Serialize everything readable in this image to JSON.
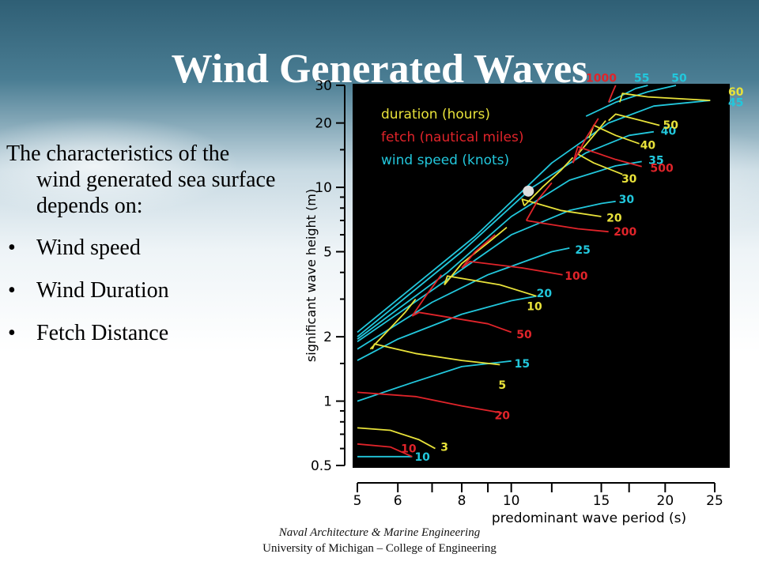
{
  "slide": {
    "title": "Wind Generated Waves",
    "intro": "The characteristics of the wind generated sea surface depends on:",
    "bullet_glyph": "•",
    "bullets": [
      "Wind speed",
      "Wind Duration",
      "Fetch Distance"
    ],
    "footer_line1": "Naval Architecture & Marine Engineering",
    "footer_line2": "University of Michigan – College of Engineering"
  },
  "chart_data": {
    "type": "line",
    "xlabel": "predominant wave period (s)",
    "ylabel": "significant wave height (m)",
    "x_scale": "log",
    "y_scale": "log",
    "xlim": [
      5,
      25
    ],
    "ylim": [
      0.5,
      30
    ],
    "x_ticks": [
      5,
      6,
      8,
      10,
      15,
      20,
      25
    ],
    "x_tick_labels": [
      "5",
      "6",
      "8",
      "10",
      "15",
      "20",
      "25"
    ],
    "x_minor_ticks": [
      7,
      9,
      12,
      17
    ],
    "y_ticks": [
      0.5,
      1,
      2,
      5,
      10,
      20,
      30
    ],
    "y_tick_labels": [
      "0.5",
      "1",
      "2",
      "5",
      "10",
      "20",
      "30"
    ],
    "y_minor_ticks": [
      0.6,
      0.7,
      0.8,
      0.9,
      1.5,
      3,
      4,
      6,
      7,
      8,
      9,
      15
    ],
    "grid": false,
    "background": "#000000",
    "legend_position": "top-left",
    "legend": [
      {
        "label": "duration (hours)",
        "color": "#e8e23a"
      },
      {
        "label": "fetch (nautical miles)",
        "color": "#e0242a"
      },
      {
        "label": "wind speed (knots)",
        "color": "#22c7dc"
      }
    ],
    "series": [
      {
        "group": "wind speed (knots)",
        "label": "10",
        "color": "#22c7dc",
        "points": [
          [
            5.0,
            0.55
          ],
          [
            6.4,
            0.55
          ]
        ]
      },
      {
        "group": "wind speed (knots)",
        "label": "15",
        "color": "#22c7dc",
        "points": [
          [
            5.0,
            1.0
          ],
          [
            6.4,
            1.22
          ],
          [
            8.0,
            1.45
          ],
          [
            10.0,
            1.54
          ]
        ]
      },
      {
        "group": "wind speed (knots)",
        "label": "20",
        "color": "#22c7dc",
        "points": [
          [
            5.0,
            1.55
          ],
          [
            6.0,
            1.95
          ],
          [
            8.0,
            2.55
          ],
          [
            10.0,
            2.95
          ],
          [
            11.2,
            3.1
          ]
        ]
      },
      {
        "group": "wind speed (knots)",
        "label": "25",
        "color": "#22c7dc",
        "points": [
          [
            5.0,
            1.75
          ],
          [
            7.0,
            2.9
          ],
          [
            9.0,
            3.9
          ],
          [
            12.0,
            5.0
          ],
          [
            13.0,
            5.2
          ]
        ]
      },
      {
        "group": "wind speed (knots)",
        "label": "30",
        "color": "#22c7dc",
        "points": [
          [
            5.0,
            1.9
          ],
          [
            7.0,
            3.3
          ],
          [
            10.0,
            6.0
          ],
          [
            13.0,
            7.8
          ],
          [
            15.0,
            8.4
          ],
          [
            16.0,
            8.6
          ]
        ]
      },
      {
        "group": "wind speed (knots)",
        "label": "35",
        "color": "#22c7dc",
        "points": [
          [
            5.0,
            1.95
          ],
          [
            7.5,
            4.0
          ],
          [
            10.0,
            7.3
          ],
          [
            13.0,
            10.8
          ],
          [
            16.0,
            12.6
          ],
          [
            18.0,
            13.2
          ]
        ]
      },
      {
        "group": "wind speed (knots)",
        "label": "40",
        "color": "#22c7dc",
        "points": [
          [
            5.0,
            2.0
          ],
          [
            8.0,
            5.0
          ],
          [
            11.0,
            10.0
          ],
          [
            14.0,
            14.5
          ],
          [
            17.0,
            17.5
          ],
          [
            19.0,
            18.2
          ]
        ]
      },
      {
        "group": "wind speed (knots)",
        "label": "45",
        "color": "#22c7dc",
        "points": [
          [
            5.0,
            2.1
          ],
          [
            8.5,
            5.9
          ],
          [
            12.0,
            13.0
          ],
          [
            15.5,
            20.0
          ],
          [
            19.0,
            24.0
          ],
          [
            24.5,
            25.5
          ]
        ]
      },
      {
        "group": "wind speed (knots)",
        "label": "50",
        "color": "#22c7dc",
        "points": [
          [
            14.0,
            21.5
          ],
          [
            16.0,
            25.0
          ],
          [
            18.5,
            28.0
          ],
          [
            21.0,
            30.0
          ]
        ]
      },
      {
        "group": "wind speed (knots)",
        "label": "55",
        "color": "#22c7dc",
        "points": [
          [
            15.5,
            25.0
          ],
          [
            17.5,
            29.0
          ],
          [
            18.5,
            30.0
          ]
        ]
      },
      {
        "group": "duration (hours)",
        "label": "3",
        "color": "#e8e23a",
        "points": [
          [
            5.0,
            0.75
          ],
          [
            5.8,
            0.73
          ],
          [
            6.6,
            0.66
          ],
          [
            7.1,
            0.6
          ]
        ]
      },
      {
        "group": "duration (hours)",
        "label": "5",
        "color": "#e8e23a",
        "points": [
          [
            5.35,
            1.75
          ],
          [
            5.4,
            1.85
          ],
          [
            6.5,
            1.67
          ],
          [
            8.0,
            1.55
          ],
          [
            9.5,
            1.48
          ]
        ]
      },
      {
        "group": "duration (hours)",
        "label": "10",
        "color": "#e8e23a",
        "points": [
          [
            7.4,
            3.5
          ],
          [
            7.5,
            3.85
          ],
          [
            9.5,
            3.5
          ],
          [
            11.2,
            3.1
          ]
        ]
      },
      {
        "group": "duration (hours)",
        "label": "20",
        "color": "#e8e23a",
        "points": [
          [
            10.6,
            8.2
          ],
          [
            10.5,
            8.8
          ],
          [
            12.5,
            7.8
          ],
          [
            15.0,
            7.3
          ]
        ]
      },
      {
        "group": "duration (hours)",
        "label": "30",
        "color": "#e8e23a",
        "points": [
          [
            13.5,
            14.3
          ],
          [
            14.5,
            13.0
          ],
          [
            16.5,
            11.5
          ]
        ]
      },
      {
        "group": "duration (hours)",
        "label": "40",
        "color": "#e8e23a",
        "points": [
          [
            14.2,
            17.0
          ],
          [
            14.5,
            19.5
          ],
          [
            16.0,
            17.5
          ],
          [
            17.8,
            16.0
          ]
        ]
      },
      {
        "group": "duration (hours)",
        "label": "50",
        "color": "#e8e23a",
        "points": [
          [
            15.5,
            20.5
          ],
          [
            16.0,
            22.0
          ],
          [
            18.0,
            20.5
          ],
          [
            19.5,
            19.5
          ]
        ]
      },
      {
        "group": "duration (hours)",
        "label": "60",
        "color": "#e8e23a",
        "points": [
          [
            16.3,
            25.0
          ],
          [
            16.5,
            27.5
          ],
          [
            18.5,
            26.5
          ],
          [
            24.5,
            25.5
          ]
        ]
      },
      {
        "group": "duration (hours)",
        "label": "",
        "color": "#e8e23a",
        "points": [
          [
            5.3,
            1.75
          ],
          [
            5.7,
            2.1
          ],
          [
            6.2,
            2.6
          ],
          [
            6.5,
            3.0
          ]
        ]
      },
      {
        "group": "duration (hours)",
        "label": "",
        "color": "#e8e23a",
        "points": [
          [
            7.4,
            3.5
          ],
          [
            8.0,
            4.4
          ],
          [
            9.0,
            5.5
          ],
          [
            9.8,
            6.5
          ]
        ]
      },
      {
        "group": "duration (hours)",
        "label": "",
        "color": "#e8e23a",
        "points": [
          [
            10.6,
            8.2
          ],
          [
            11.5,
            10.0
          ],
          [
            12.5,
            12.0
          ],
          [
            13.2,
            13.8
          ]
        ]
      },
      {
        "group": "duration (hours)",
        "label": "",
        "color": "#e8e23a",
        "points": [
          [
            13.5,
            14.3
          ],
          [
            14.5,
            17.5
          ],
          [
            15.3,
            20.5
          ]
        ]
      },
      {
        "group": "fetch (nautical miles)",
        "label": "10",
        "color": "#e0242a",
        "points": [
          [
            5.0,
            0.63
          ],
          [
            5.8,
            0.61
          ],
          [
            6.4,
            0.55
          ]
        ]
      },
      {
        "group": "fetch (nautical miles)",
        "label": "20",
        "color": "#e0242a",
        "points": [
          [
            5.0,
            1.1
          ],
          [
            6.5,
            1.05
          ],
          [
            8.0,
            0.95
          ],
          [
            9.6,
            0.88
          ]
        ]
      },
      {
        "group": "fetch (nautical miles)",
        "label": "50",
        "color": "#e0242a",
        "points": [
          [
            6.4,
            2.5
          ],
          [
            6.6,
            2.6
          ],
          [
            9.0,
            2.3
          ],
          [
            10.0,
            2.1
          ]
        ]
      },
      {
        "group": "fetch (nautical miles)",
        "label": "100",
        "color": "#e0242a",
        "points": [
          [
            8.0,
            4.2
          ],
          [
            8.3,
            4.5
          ],
          [
            10.5,
            4.2
          ],
          [
            12.6,
            3.9
          ]
        ]
      },
      {
        "group": "fetch (nautical miles)",
        "label": "200",
        "color": "#e0242a",
        "points": [
          [
            10.7,
            7.0
          ],
          [
            11.5,
            6.8
          ],
          [
            13.5,
            6.4
          ],
          [
            15.5,
            6.2
          ]
        ]
      },
      {
        "group": "fetch (nautical miles)",
        "label": "500",
        "color": "#e0242a",
        "points": [
          [
            13.2,
            13.0
          ],
          [
            13.5,
            15.5
          ],
          [
            16.0,
            13.5
          ],
          [
            18.0,
            12.5
          ]
        ]
      },
      {
        "group": "fetch (nautical miles)",
        "label": "1000",
        "color": "#e0242a",
        "points": [
          [
            15.5,
            25.0
          ],
          [
            15.8,
            28.0
          ],
          [
            16.0,
            30.0
          ]
        ]
      },
      {
        "group": "fetch (nautical miles)",
        "label": "",
        "color": "#e0242a",
        "points": [
          [
            6.4,
            2.5
          ],
          [
            6.8,
            3.1
          ],
          [
            7.3,
            3.9
          ]
        ]
      },
      {
        "group": "fetch (nautical miles)",
        "label": "",
        "color": "#e0242a",
        "points": [
          [
            8.0,
            4.2
          ],
          [
            8.5,
            5.0
          ],
          [
            9.3,
            6.0
          ]
        ]
      },
      {
        "group": "fetch (nautical miles)",
        "label": "",
        "color": "#e0242a",
        "points": [
          [
            10.7,
            7.0
          ],
          [
            11.3,
            8.8
          ],
          [
            12.0,
            10.5
          ]
        ]
      },
      {
        "group": "fetch (nautical miles)",
        "label": "",
        "color": "#e0242a",
        "points": [
          [
            13.2,
            13.0
          ],
          [
            14.0,
            17.0
          ],
          [
            14.8,
            21.0
          ]
        ]
      }
    ],
    "curve_labels": [
      {
        "text": "10",
        "color": "#22c7dc",
        "x": 6.7,
        "y": 0.55
      },
      {
        "text": "15",
        "color": "#22c7dc",
        "x": 10.5,
        "y": 1.5
      },
      {
        "text": "20",
        "color": "#22c7dc",
        "x": 11.6,
        "y": 3.2
      },
      {
        "text": "25",
        "color": "#22c7dc",
        "x": 13.8,
        "y": 5.1
      },
      {
        "text": "30",
        "color": "#22c7dc",
        "x": 16.8,
        "y": 8.8
      },
      {
        "text": "35",
        "color": "#22c7dc",
        "x": 19.2,
        "y": 13.4
      },
      {
        "text": "40",
        "color": "#22c7dc",
        "x": 20.3,
        "y": 18.4
      },
      {
        "text": "45",
        "color": "#22c7dc",
        "x": 27.5,
        "y": 25.0
      },
      {
        "text": "50",
        "color": "#22c7dc",
        "x": 21.3,
        "y": 32.5
      },
      {
        "text": "55",
        "color": "#22c7dc",
        "x": 18.0,
        "y": 32.5
      },
      {
        "text": "3",
        "color": "#e8e23a",
        "x": 7.4,
        "y": 0.61
      },
      {
        "text": "5",
        "color": "#e8e23a",
        "x": 9.6,
        "y": 1.19
      },
      {
        "text": "10",
        "color": "#e8e23a",
        "x": 11.1,
        "y": 2.78
      },
      {
        "text": "20",
        "color": "#e8e23a",
        "x": 15.9,
        "y": 7.2
      },
      {
        "text": "30",
        "color": "#e8e23a",
        "x": 17.0,
        "y": 11.0
      },
      {
        "text": "40",
        "color": "#e8e23a",
        "x": 18.5,
        "y": 15.8
      },
      {
        "text": "50",
        "color": "#e8e23a",
        "x": 20.5,
        "y": 19.6
      },
      {
        "text": "60",
        "color": "#e8e23a",
        "x": 27.5,
        "y": 28.0
      },
      {
        "text": "10",
        "color": "#e0242a",
        "x": 6.3,
        "y": 0.6
      },
      {
        "text": "20",
        "color": "#e0242a",
        "x": 9.6,
        "y": 0.86
      },
      {
        "text": "50",
        "color": "#e0242a",
        "x": 10.6,
        "y": 2.05
      },
      {
        "text": "100",
        "color": "#e0242a",
        "x": 13.4,
        "y": 3.85
      },
      {
        "text": "200",
        "color": "#e0242a",
        "x": 16.7,
        "y": 6.2
      },
      {
        "text": "500",
        "color": "#e0242a",
        "x": 19.7,
        "y": 12.3
      },
      {
        "text": "1000",
        "color": "#e0242a",
        "x": 15.0,
        "y": 32.5
      }
    ],
    "marker": {
      "x": 10.8,
      "y": 9.6,
      "color": "#dddddd"
    }
  }
}
